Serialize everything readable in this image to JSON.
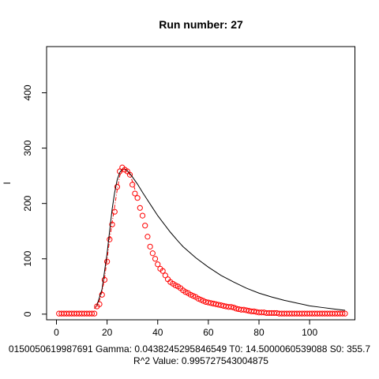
{
  "chart_data": {
    "type": "scatter",
    "title": "Run number:  27",
    "xlabel": "",
    "ylabel": "I",
    "xlim": [
      -3.9,
      117.9
    ],
    "ylim": [
      -10.2,
      483.5
    ],
    "x_ticks": [
      0,
      20,
      40,
      60,
      80,
      100
    ],
    "y_ticks": [
      0,
      100,
      200,
      300,
      400
    ],
    "x_tick_labels": [
      "0",
      "20",
      "40",
      "60",
      "80",
      "100"
    ],
    "y_tick_labels": [
      "0",
      "100",
      "200",
      "300",
      "400"
    ],
    "grid": false,
    "legend": "none",
    "annotation_line1": "0150050619987691 Gamma:  0.0438245295846549 T0:  14.5000060539088 S0:  355.7",
    "annotation_line2": "R^2 Value:  0.995727543004875",
    "series": [
      {
        "style": "points",
        "color": "#ff0000",
        "marker": "open-circle",
        "x": [
          1,
          2,
          3,
          4,
          5,
          6,
          7,
          8,
          9,
          10,
          11,
          12,
          13,
          14,
          15,
          16,
          17,
          18,
          19,
          20,
          21,
          22,
          23,
          24,
          25,
          26,
          27,
          28,
          29,
          30,
          31,
          32,
          33,
          34,
          35,
          36,
          37,
          38,
          39,
          40,
          41,
          42,
          43,
          44,
          45,
          46,
          47,
          48,
          49,
          50,
          51,
          52,
          53,
          54,
          55,
          56,
          57,
          58,
          59,
          60,
          61,
          62,
          63,
          64,
          65,
          66,
          67,
          68,
          69,
          70,
          71,
          72,
          73,
          74,
          75,
          76,
          77,
          78,
          79,
          80,
          81,
          82,
          83,
          84,
          85,
          86,
          87,
          88,
          89,
          90,
          91,
          92,
          93,
          94,
          95,
          96,
          97,
          98,
          99,
          100,
          101,
          102,
          103,
          104,
          105,
          106,
          107,
          108,
          109,
          110,
          111,
          112,
          113,
          114
        ],
        "y": [
          1,
          1,
          1,
          1,
          1,
          1,
          1,
          1,
          1,
          1,
          1,
          1,
          1,
          1,
          1,
          14,
          18,
          35,
          62,
          95,
          135,
          162,
          185,
          230,
          258,
          265,
          261,
          258,
          252,
          234,
          218,
          210,
          192,
          178,
          160,
          140,
          122,
          110,
          100,
          90,
          82,
          78,
          70,
          63,
          58,
          55,
          52,
          50,
          47,
          43,
          40,
          38,
          35,
          33,
          31,
          28,
          26,
          24,
          22,
          21,
          20,
          19,
          18,
          17,
          16,
          15,
          14,
          13,
          13,
          12,
          10,
          9,
          8,
          8,
          7,
          6,
          5,
          5,
          4,
          3,
          3,
          3,
          2,
          2,
          2,
          2,
          2,
          1,
          1,
          1,
          1,
          1,
          1,
          1,
          1,
          1,
          1,
          1,
          1,
          1,
          1,
          1,
          1,
          1,
          1,
          1,
          1,
          1,
          1,
          1,
          1,
          1,
          1,
          1
        ]
      },
      {
        "style": "line",
        "color": "#000000",
        "x": [
          15,
          16,
          18,
          20,
          21,
          22,
          23,
          24,
          25,
          26,
          27,
          28,
          29,
          30,
          32,
          34,
          36,
          38,
          40,
          42,
          45,
          48,
          50,
          55,
          60,
          65,
          70,
          75,
          80,
          85,
          90,
          95,
          100,
          105,
          110,
          114
        ],
        "y": [
          10,
          16,
          45,
          110,
          150,
          190,
          220,
          243,
          256,
          262,
          262,
          259,
          254,
          248,
          235,
          220,
          206,
          192,
          178,
          166,
          148,
          132,
          122,
          102,
          85,
          70,
          58,
          47,
          38,
          31,
          25,
          20,
          15,
          12,
          9,
          7
        ]
      },
      {
        "style": "dash-dot",
        "color": "#ff0000",
        "x": [
          15,
          16,
          17,
          18,
          19,
          20,
          21,
          22,
          23,
          24,
          25,
          26,
          27,
          28,
          29,
          30,
          31
        ],
        "y": [
          10,
          16,
          25,
          40,
          65,
          100,
          135,
          165,
          195,
          225,
          250,
          262,
          262,
          258,
          252,
          240,
          225
        ]
      }
    ]
  }
}
